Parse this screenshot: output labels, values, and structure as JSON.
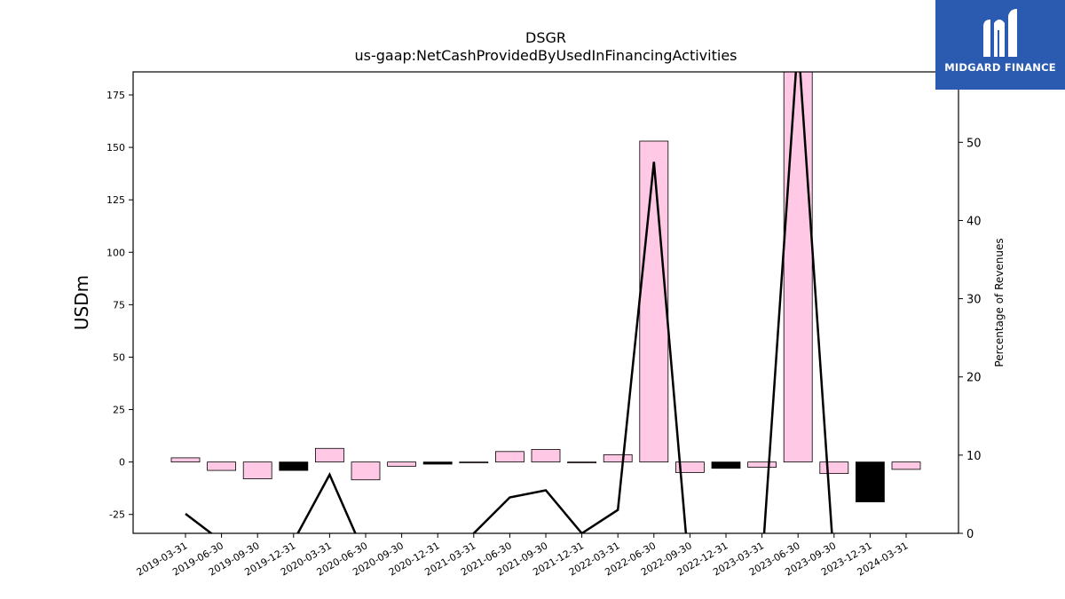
{
  "chart_data": {
    "type": "bar",
    "title": "DSGR",
    "subtitle": "us-gaap:NetCashProvidedByUsedInFinancingActivities",
    "ylabel": "USDm",
    "y2label": "Percentage of Revenues",
    "categories": [
      "2019-03-31",
      "2019-06-30",
      "2019-09-30",
      "2019-12-31",
      "2020-03-31",
      "2020-06-30",
      "2020-09-30",
      "2020-12-31",
      "2021-03-31",
      "2021-06-30",
      "2021-09-30",
      "2021-12-31",
      "2022-03-31",
      "2022-06-30",
      "2022-09-30",
      "2022-12-31",
      "2023-03-31",
      "2023-06-30",
      "2023-09-30",
      "2023-12-31",
      "2024-03-31"
    ],
    "values": [
      2,
      -4,
      -8,
      -4,
      6.5,
      -8.5,
      -2,
      -1,
      0,
      5,
      6,
      0,
      3.5,
      153,
      -5,
      -3,
      -2.5,
      190,
      -5.5,
      -19,
      -3.5
    ],
    "bar_colors": [
      "#ffc9e5",
      "#ffc9e5",
      "#ffc9e5",
      "#000000",
      "#ffc9e5",
      "#ffc9e5",
      "#ffc9e5",
      "#000000",
      "#ffc9e5",
      "#ffc9e5",
      "#ffc9e5",
      "#ffc9e5",
      "#ffc9e5",
      "#ffc9e5",
      "#ffc9e5",
      "#000000",
      "#ffc9e5",
      "#ffc9e5",
      "#ffc9e5",
      "#000000",
      "#ffc9e5"
    ],
    "line_series": {
      "values": [
        2.5,
        -1,
        -2,
        -1,
        7.5,
        -3,
        -4,
        -3,
        0,
        4.6,
        5.5,
        0,
        3,
        47.5,
        -6,
        -4,
        -4,
        63,
        -4,
        null,
        null
      ]
    },
    "ylim": [
      -34,
      186
    ],
    "y2lim": [
      0,
      59
    ],
    "yticks": [
      -25,
      0,
      25,
      50,
      75,
      100,
      125,
      150,
      175
    ],
    "y2ticks": [
      0,
      10,
      20,
      30,
      40,
      50
    ],
    "grid": false
  },
  "logo": {
    "text": "MIDGARD FINANCE",
    "icon": "midgard-logo-icon"
  }
}
